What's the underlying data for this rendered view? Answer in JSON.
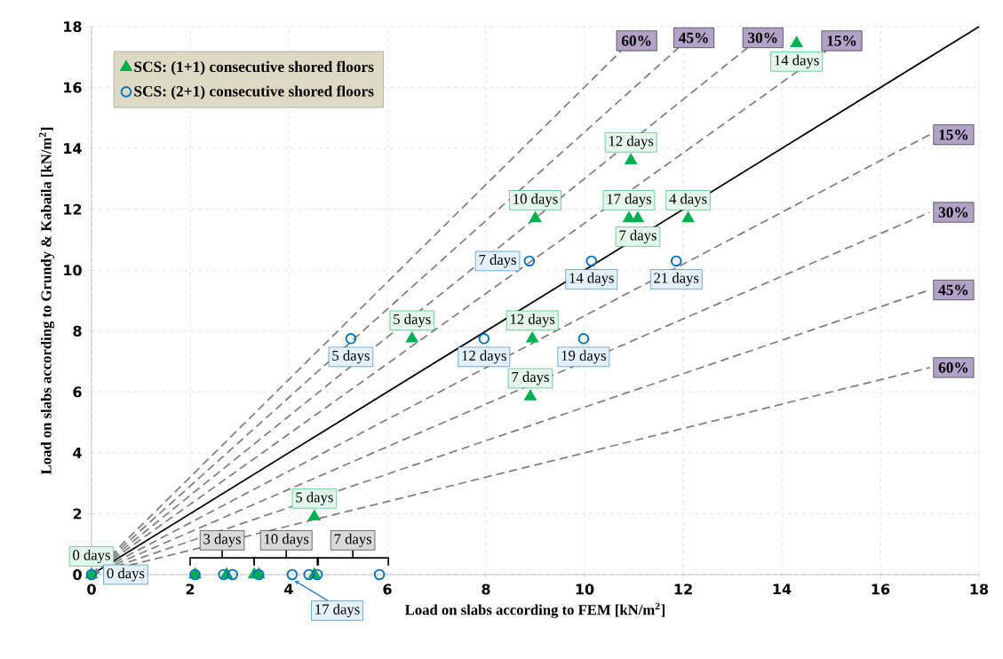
{
  "chart_data": {
    "type": "scatter",
    "xlabel": "Load on slabs according to FEM [kN/m$^{2}$]",
    "ylabel": "Load on slabs according to Grundy & Kabaila [kN/m$^{2}$]",
    "xlim": [
      0,
      18
    ],
    "ylim": [
      0,
      18
    ],
    "xticks": [
      0,
      2,
      4,
      6,
      8,
      10,
      12,
      14,
      16,
      18
    ],
    "yticks": [
      0,
      2,
      4,
      6,
      8,
      10,
      12,
      14,
      16,
      18
    ],
    "grid": true,
    "legend": "top left",
    "series": [
      {
        "name": "SCS: (1+1) consecutive shored floors",
        "marker": "triangle",
        "color": "#00b050",
        "x": [
          0,
          2.1,
          2.74,
          3.3,
          3.39,
          4.52,
          4.52,
          6.5,
          8.9,
          8.94,
          9.0,
          10.9,
          11.08,
          10.94,
          12.1,
          14.3
        ],
        "values": [
          0,
          0,
          0,
          0,
          0,
          0,
          1.9,
          7.75,
          5.85,
          7.75,
          11.7,
          11.7,
          11.7,
          13.6,
          11.7,
          17.45
        ]
      },
      {
        "name": "SCS: (2+1) consecutive shored floors",
        "marker": "circle",
        "color": "#0070c0",
        "x": [
          0,
          2.1,
          2.68,
          2.86,
          3.39,
          4.07,
          4.41,
          4.58,
          5.84,
          5.26,
          7.96,
          9.98,
          8.88,
          10.14,
          11.86
        ],
        "values": [
          0,
          0,
          0,
          0,
          0,
          0,
          0,
          0,
          0,
          7.75,
          7.75,
          7.75,
          10.3,
          10.3,
          10.3
        ]
      },
      {
        "type": "line",
        "color": "#000000",
        "line_style": "solid",
        "marker": "none",
        "x": [
          0,
          18
        ],
        "values": [
          0,
          18
        ]
      },
      {
        "name": "60%",
        "type": "line",
        "color": "#808080",
        "line_style": "dashed",
        "marker": "none",
        "x": [
          0,
          10.74
        ],
        "values": [
          0,
          17.2
        ]
      },
      {
        "name": "45%",
        "type": "line",
        "color": "#808080",
        "line_style": "dashed",
        "marker": "none",
        "x": [
          0,
          11.9
        ],
        "values": [
          0,
          17.3
        ]
      },
      {
        "name": "30%",
        "type": "line",
        "color": "#808080",
        "line_style": "dashed",
        "marker": "none",
        "x": [
          0,
          13.3
        ],
        "values": [
          0,
          17.3
        ]
      },
      {
        "name": "15%",
        "type": "line",
        "color": "#808080",
        "line_style": "dashed",
        "marker": "none",
        "x": [
          0,
          14.9
        ],
        "values": [
          0,
          17.2
        ]
      },
      {
        "name": "15%",
        "type": "line",
        "color": "#808080",
        "line_style": "dashed",
        "marker": "none",
        "x": [
          0,
          17
        ],
        "values": [
          0,
          14.45
        ]
      },
      {
        "name": "30%",
        "type": "line",
        "color": "#808080",
        "line_style": "dashed",
        "marker": "none",
        "x": [
          0,
          17
        ],
        "values": [
          0,
          11.9
        ]
      },
      {
        "name": "45%",
        "type": "line",
        "color": "#808080",
        "line_style": "dashed",
        "marker": "none",
        "x": [
          0,
          17
        ],
        "values": [
          0,
          9.35
        ]
      },
      {
        "name": "60%",
        "type": "line",
        "color": "#808080",
        "line_style": "dashed",
        "marker": "none",
        "x": [
          0,
          17
        ],
        "values": [
          0,
          6.8
        ]
      }
    ],
    "annotations": [
      {
        "text": "0 days",
        "x": 0,
        "y": 0
      },
      {
        "text": "5 days",
        "x": 4.52,
        "y": 1.9
      },
      {
        "text": "5 days",
        "x": 6.5,
        "y": 7.75
      },
      {
        "text": "7 days",
        "x": 8.9,
        "y": 5.85
      },
      {
        "text": "12 days",
        "x": 8.94,
        "y": 7.75
      },
      {
        "text": "10 days",
        "x": 9.0,
        "y": 11.7
      },
      {
        "text": "17 days",
        "x": 10.9,
        "y": 11.7
      },
      {
        "text": "7 days",
        "x": 11.08,
        "y": 11.7
      },
      {
        "text": "12 days",
        "x": 10.94,
        "y": 13.6
      },
      {
        "text": "4 days",
        "x": 12.1,
        "y": 11.7
      },
      {
        "text": "14 days",
        "x": 14.3,
        "y": 17.45
      },
      {
        "text": "0 days",
        "x": 0,
        "y": 0
      },
      {
        "text": "17 days",
        "x": 4.07,
        "y": 0
      },
      {
        "text": "5 days",
        "x": 5.26,
        "y": 7.75
      },
      {
        "text": "12 days",
        "x": 7.96,
        "y": 7.75
      },
      {
        "text": "19 days",
        "x": 9.98,
        "y": 7.75
      },
      {
        "text": "7 days",
        "x": 8.88,
        "y": 10.3
      },
      {
        "text": "14 days",
        "x": 10.14,
        "y": 10.3
      },
      {
        "text": "21 days",
        "x": 11.86,
        "y": 10.3
      },
      {
        "text": "3 days",
        "x": 2.74,
        "y": 0
      },
      {
        "text": "10 days",
        "x": 4.07,
        "y": 0
      },
      {
        "text": "7 days",
        "x": 5.84,
        "y": 0
      }
    ]
  }
}
